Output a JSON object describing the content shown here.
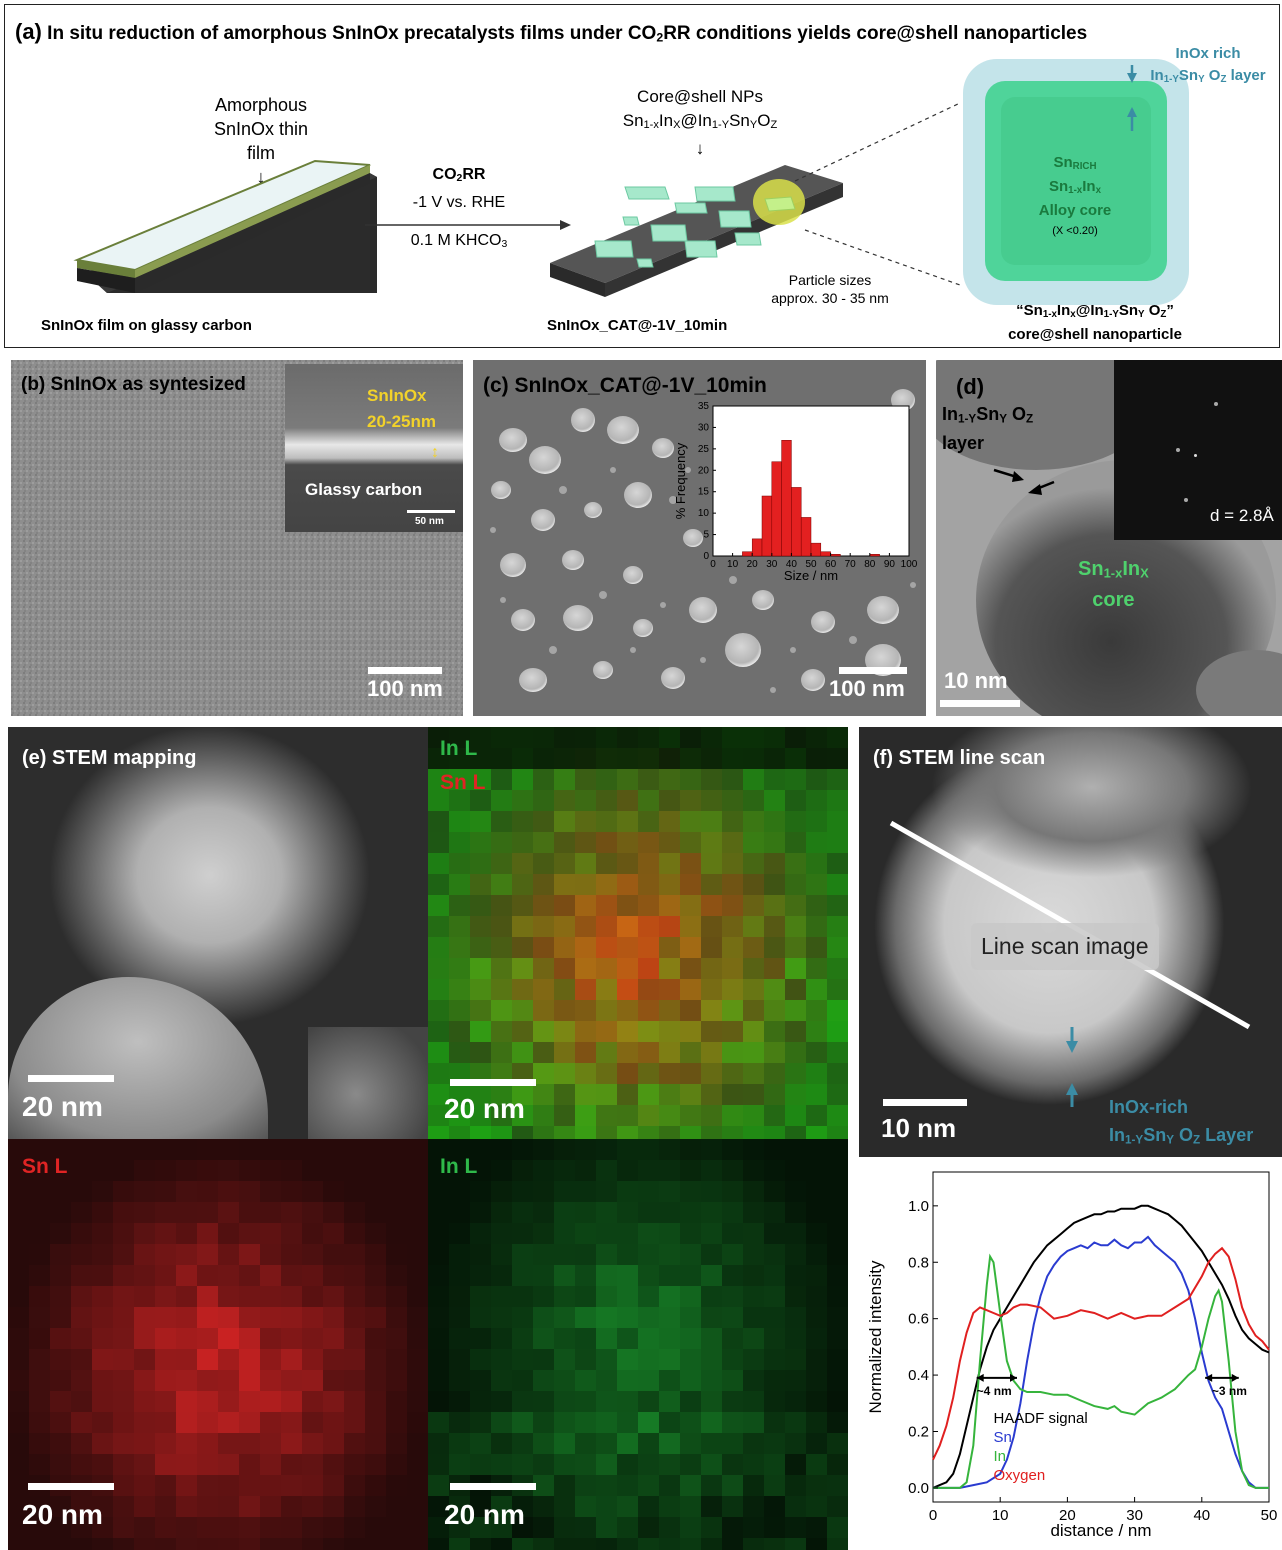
{
  "panel_a": {
    "letter": "(a)",
    "title_pre": "In situ reduction of amorphous SnInOx precatalysts films under CO",
    "title_sub": "2",
    "title_post": "RR conditions yields core@shell nanoparticles",
    "film_label_1": "Amorphous",
    "film_label_2": "SnInOx thin film",
    "film_caption": "SnInOx film on glassy carbon",
    "co2rr": "CO",
    "co2rr_sub": "2",
    "co2rr_post": "RR",
    "potential": "-1 V vs. RHE",
    "electrolyte": "0.1 M KHCO",
    "electrolyte_sub": "3",
    "np_label_1": "Core@shell NPs",
    "np_formula": "Sn1-xInx@In1-ySnyOz",
    "np_caption": "SnInOx_CAT@-1V_10min",
    "size_1": "Particle sizes",
    "size_2": "approx. 30 - 35 nm",
    "inox_rich": "InOx rich",
    "layer_formula": "In1-YSnY OZ layer",
    "core_1": "SnRICH",
    "core_2": "Sn1-xInx",
    "core_3": "Alloy core",
    "core_4": "(X <0.20)",
    "core_shell_1": "“Sn1-xInx@In1-YSnY OZ”",
    "core_shell_2": "core@shell nanoparticle"
  },
  "panel_b": {
    "title": "(b) SnInOx as syntesized",
    "inset_1": "SnInOx",
    "inset_2": "20-25nm",
    "inset_gc": "Glassy carbon",
    "inset_scale": "50 nm",
    "scale": "100 nm"
  },
  "panel_c": {
    "title": "(c) SnInOx_CAT@-1V_10min",
    "scale": "100 nm"
  },
  "panel_d": {
    "letter": "(d)",
    "layer_1": "In1-YSnY OZ",
    "layer_2": "layer",
    "core_1": "Sn1-xInX",
    "core_2": "core",
    "fft": "d = 2.8Å",
    "scale": "10 nm"
  },
  "panel_e": {
    "title": "(e) STEM mapping",
    "in_l": "In L",
    "sn_l": "Sn L",
    "scale": "20 nm"
  },
  "panel_f": {
    "title": "(f) STEM line scan",
    "box": "Line scan image",
    "layer_1": "InOx-rich",
    "layer_2": "In1-YSnY OZ Layer",
    "scale": "10 nm"
  },
  "colors": {
    "film": "#eaf4f5",
    "particle": "#9fe0c2",
    "core": "#4fd49a",
    "shell": "#c4e4ea",
    "accent_teal": "#3b8ca5",
    "sn": "#e02424",
    "in": "#2fb94a"
  },
  "chart_data": [
    {
      "type": "bar",
      "xlabel": "Size / nm",
      "ylabel": "% Frequency",
      "xlim": [
        0,
        100
      ],
      "ylim": [
        0,
        35
      ],
      "xticks": [
        0,
        10,
        20,
        30,
        40,
        50,
        60,
        70,
        80,
        90,
        100
      ],
      "yticks": [
        0,
        5,
        10,
        15,
        20,
        25,
        30,
        35
      ],
      "bin_width": 5,
      "bins": [
        15,
        20,
        25,
        30,
        35,
        40,
        45,
        50,
        55,
        60,
        80
      ],
      "values": [
        1,
        4,
        14,
        22,
        27,
        16,
        9,
        3,
        1,
        0.4,
        0.4
      ],
      "color": "#e32020"
    },
    {
      "type": "line",
      "xlabel": "distance / nm",
      "ylabel": "Normalized intensity",
      "xlim": [
        0,
        50
      ],
      "ylim": [
        -0.05,
        1.12
      ],
      "xticks": [
        0,
        10,
        20,
        30,
        40,
        50
      ],
      "yticks": [
        0.0,
        0.2,
        0.4,
        0.6,
        0.8,
        1.0
      ],
      "legend": [
        "HAADF signal",
        "Sn",
        "In",
        "Oxygen"
      ],
      "annotations": [
        "~4 nm",
        "~3 nm"
      ],
      "series": [
        {
          "name": "HAADF signal",
          "color": "#000000",
          "x": [
            0,
            1,
            2,
            3,
            4,
            5,
            6,
            7,
            8,
            9,
            10,
            11,
            12,
            13,
            14,
            15,
            16,
            17,
            18,
            19,
            20,
            21,
            22,
            23,
            24,
            25,
            26,
            27,
            28,
            29,
            30,
            31,
            32,
            33,
            34,
            35,
            36,
            37,
            38,
            39,
            40,
            41,
            42,
            43,
            44,
            45,
            46,
            47,
            48,
            49,
            50
          ],
          "y": [
            0.0,
            0.01,
            0.02,
            0.05,
            0.12,
            0.22,
            0.32,
            0.42,
            0.5,
            0.56,
            0.6,
            0.64,
            0.68,
            0.72,
            0.76,
            0.8,
            0.83,
            0.86,
            0.88,
            0.9,
            0.92,
            0.94,
            0.95,
            0.96,
            0.97,
            0.97,
            0.98,
            0.98,
            0.99,
            0.99,
            0.99,
            1.0,
            1.0,
            0.99,
            0.98,
            0.97,
            0.95,
            0.93,
            0.9,
            0.87,
            0.84,
            0.8,
            0.76,
            0.72,
            0.67,
            0.61,
            0.56,
            0.53,
            0.51,
            0.49,
            0.48
          ]
        },
        {
          "name": "Sn",
          "color": "#2a3bd0",
          "x": [
            0,
            2,
            4,
            6,
            8,
            10,
            11,
            12,
            13,
            14,
            15,
            16,
            17,
            18,
            19,
            20,
            21,
            22,
            23,
            24,
            25,
            26,
            27,
            28,
            29,
            30,
            31,
            32,
            33,
            34,
            35,
            36,
            37,
            38,
            39,
            40,
            41,
            42,
            43,
            44,
            45,
            46,
            47,
            48,
            50
          ],
          "y": [
            0.0,
            0.0,
            0.0,
            0.01,
            0.02,
            0.05,
            0.1,
            0.18,
            0.3,
            0.45,
            0.58,
            0.68,
            0.75,
            0.79,
            0.82,
            0.84,
            0.85,
            0.86,
            0.85,
            0.87,
            0.86,
            0.86,
            0.88,
            0.86,
            0.85,
            0.87,
            0.87,
            0.89,
            0.86,
            0.84,
            0.82,
            0.8,
            0.76,
            0.7,
            0.6,
            0.48,
            0.38,
            0.32,
            0.28,
            0.2,
            0.12,
            0.06,
            0.02,
            0.0,
            0.0
          ]
        },
        {
          "name": "In",
          "color": "#36b43c",
          "x": [
            0,
            2,
            4,
            5,
            6,
            7,
            8,
            8.5,
            9,
            10,
            11,
            12,
            13,
            14,
            16,
            18,
            20,
            22,
            24,
            26,
            27,
            28,
            30,
            32,
            34,
            36,
            38,
            39,
            40,
            41,
            42,
            42.5,
            43,
            44,
            45,
            46,
            47,
            48,
            50
          ],
          "y": [
            0.0,
            0.0,
            0.0,
            0.02,
            0.15,
            0.45,
            0.72,
            0.82,
            0.8,
            0.62,
            0.45,
            0.38,
            0.35,
            0.34,
            0.34,
            0.33,
            0.33,
            0.31,
            0.29,
            0.28,
            0.29,
            0.27,
            0.26,
            0.3,
            0.32,
            0.35,
            0.4,
            0.42,
            0.5,
            0.6,
            0.68,
            0.7,
            0.66,
            0.45,
            0.2,
            0.06,
            0.01,
            0.0,
            0.0
          ]
        },
        {
          "name": "Oxygen",
          "color": "#e02020",
          "x": [
            0,
            1,
            2,
            3,
            4,
            5,
            6,
            7,
            8,
            9,
            10,
            11,
            12,
            13,
            14,
            16,
            18,
            20,
            22,
            24,
            26,
            28,
            30,
            32,
            34,
            36,
            38,
            40,
            41,
            42,
            43,
            44,
            45,
            46,
            47,
            48,
            49,
            50
          ],
          "y": [
            0.1,
            0.15,
            0.22,
            0.32,
            0.45,
            0.55,
            0.62,
            0.64,
            0.63,
            0.62,
            0.61,
            0.62,
            0.64,
            0.65,
            0.65,
            0.64,
            0.6,
            0.61,
            0.63,
            0.62,
            0.6,
            0.62,
            0.6,
            0.61,
            0.61,
            0.64,
            0.67,
            0.75,
            0.8,
            0.83,
            0.85,
            0.82,
            0.74,
            0.64,
            0.58,
            0.54,
            0.52,
            0.49
          ]
        }
      ]
    }
  ]
}
